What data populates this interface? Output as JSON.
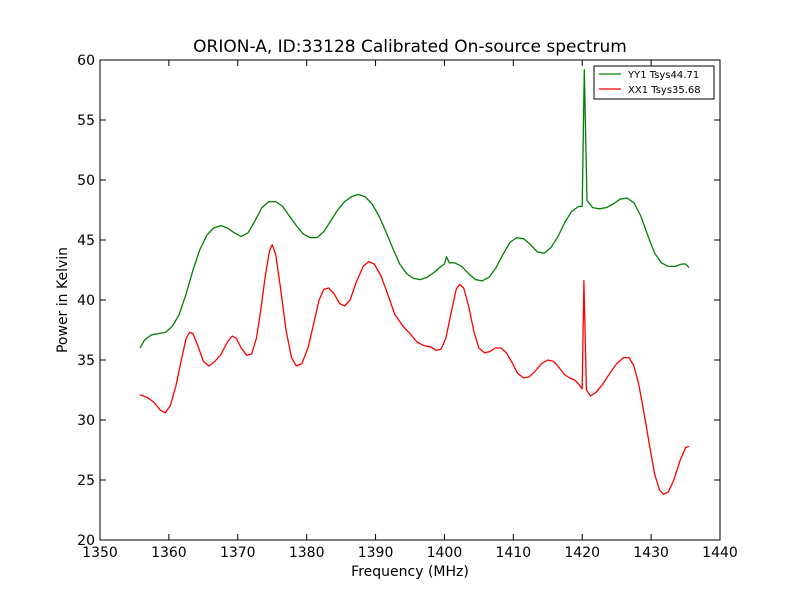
{
  "chart_data": {
    "type": "line",
    "title": "ORION-A, ID:33128 Calibrated On-source spectrum",
    "xlabel": "Frequency (MHz)",
    "ylabel": "Power in Kelvin",
    "xlim": [
      1350,
      1440
    ],
    "ylim": [
      20,
      60
    ],
    "xticks": [
      1350,
      1360,
      1370,
      1380,
      1390,
      1400,
      1410,
      1420,
      1430,
      1440
    ],
    "yticks": [
      20,
      25,
      30,
      35,
      40,
      45,
      50,
      55,
      60
    ],
    "grid": false,
    "legend_position": "top-right",
    "series": [
      {
        "name": "YY1 Tsys44.71",
        "color": "#008000",
        "points": [
          [
            1355.8,
            36.0
          ],
          [
            1356.5,
            36.7
          ],
          [
            1357.5,
            37.1
          ],
          [
            1358.5,
            37.2
          ],
          [
            1359.5,
            37.3
          ],
          [
            1360.5,
            37.8
          ],
          [
            1361.5,
            38.8
          ],
          [
            1362.5,
            40.5
          ],
          [
            1363.5,
            42.5
          ],
          [
            1364.5,
            44.2
          ],
          [
            1365.5,
            45.4
          ],
          [
            1366.5,
            46.0
          ],
          [
            1367.5,
            46.2
          ],
          [
            1368.5,
            46.0
          ],
          [
            1369.5,
            45.6
          ],
          [
            1370.5,
            45.3
          ],
          [
            1371.5,
            45.6
          ],
          [
            1372.5,
            46.6
          ],
          [
            1373.5,
            47.7
          ],
          [
            1374.5,
            48.2
          ],
          [
            1375.5,
            48.2
          ],
          [
            1376.5,
            47.8
          ],
          [
            1377.5,
            47.0
          ],
          [
            1378.5,
            46.2
          ],
          [
            1379.5,
            45.5
          ],
          [
            1380.5,
            45.2
          ],
          [
            1381.5,
            45.2
          ],
          [
            1382.5,
            45.7
          ],
          [
            1383.5,
            46.6
          ],
          [
            1384.5,
            47.5
          ],
          [
            1385.5,
            48.2
          ],
          [
            1386.5,
            48.6
          ],
          [
            1387.5,
            48.8
          ],
          [
            1388.5,
            48.6
          ],
          [
            1389.5,
            48.0
          ],
          [
            1390.5,
            47.0
          ],
          [
            1391.5,
            45.7
          ],
          [
            1392.5,
            44.3
          ],
          [
            1393.5,
            43.0
          ],
          [
            1394.5,
            42.2
          ],
          [
            1395.5,
            41.8
          ],
          [
            1396.5,
            41.7
          ],
          [
            1397.5,
            41.9
          ],
          [
            1398.5,
            42.3
          ],
          [
            1399.5,
            42.8
          ],
          [
            1400.0,
            43.0
          ],
          [
            1400.3,
            43.6
          ],
          [
            1400.7,
            43.1
          ],
          [
            1401.5,
            43.1
          ],
          [
            1402.5,
            42.8
          ],
          [
            1403.5,
            42.2
          ],
          [
            1404.5,
            41.7
          ],
          [
            1405.5,
            41.6
          ],
          [
            1406.5,
            41.9
          ],
          [
            1407.5,
            42.7
          ],
          [
            1408.5,
            43.8
          ],
          [
            1409.5,
            44.8
          ],
          [
            1410.5,
            45.2
          ],
          [
            1411.5,
            45.1
          ],
          [
            1412.5,
            44.6
          ],
          [
            1413.5,
            44.0
          ],
          [
            1414.5,
            43.9
          ],
          [
            1415.5,
            44.4
          ],
          [
            1416.5,
            45.3
          ],
          [
            1417.5,
            46.5
          ],
          [
            1418.5,
            47.4
          ],
          [
            1419.5,
            47.8
          ],
          [
            1420.0,
            47.8
          ],
          [
            1420.3,
            59.2
          ],
          [
            1420.7,
            48.3
          ],
          [
            1421.5,
            47.7
          ],
          [
            1422.5,
            47.6
          ],
          [
            1423.5,
            47.7
          ],
          [
            1424.5,
            48.0
          ],
          [
            1425.5,
            48.4
          ],
          [
            1426.5,
            48.5
          ],
          [
            1427.5,
            48.1
          ],
          [
            1428.5,
            47.0
          ],
          [
            1429.5,
            45.4
          ],
          [
            1430.5,
            43.9
          ],
          [
            1431.5,
            43.1
          ],
          [
            1432.5,
            42.8
          ],
          [
            1433.5,
            42.8
          ],
          [
            1434.5,
            43.0
          ],
          [
            1435.0,
            43.0
          ],
          [
            1435.5,
            42.7
          ]
        ]
      },
      {
        "name": "XX1 Tsys35.68",
        "color": "#ff0000",
        "points": [
          [
            1355.8,
            32.1
          ],
          [
            1356.8,
            31.9
          ],
          [
            1357.8,
            31.5
          ],
          [
            1358.8,
            30.8
          ],
          [
            1359.5,
            30.6
          ],
          [
            1360.2,
            31.2
          ],
          [
            1361.0,
            32.8
          ],
          [
            1361.8,
            35.0
          ],
          [
            1362.5,
            36.8
          ],
          [
            1363.0,
            37.3
          ],
          [
            1363.5,
            37.2
          ],
          [
            1364.2,
            36.2
          ],
          [
            1365.0,
            34.9
          ],
          [
            1365.8,
            34.5
          ],
          [
            1366.5,
            34.8
          ],
          [
            1367.5,
            35.4
          ],
          [
            1368.5,
            36.5
          ],
          [
            1369.2,
            37.0
          ],
          [
            1369.8,
            36.8
          ],
          [
            1370.5,
            36.0
          ],
          [
            1371.3,
            35.4
          ],
          [
            1372.0,
            35.5
          ],
          [
            1372.7,
            36.8
          ],
          [
            1373.3,
            39.0
          ],
          [
            1374.0,
            42.0
          ],
          [
            1374.6,
            44.1
          ],
          [
            1375.0,
            44.6
          ],
          [
            1375.5,
            43.8
          ],
          [
            1376.2,
            41.0
          ],
          [
            1377.0,
            37.5
          ],
          [
            1377.8,
            35.2
          ],
          [
            1378.5,
            34.5
          ],
          [
            1379.3,
            34.7
          ],
          [
            1380.2,
            36.0
          ],
          [
            1381.0,
            38.0
          ],
          [
            1381.8,
            40.0
          ],
          [
            1382.5,
            40.9
          ],
          [
            1383.2,
            41.0
          ],
          [
            1384.0,
            40.5
          ],
          [
            1384.8,
            39.7
          ],
          [
            1385.5,
            39.5
          ],
          [
            1386.3,
            40.0
          ],
          [
            1387.2,
            41.5
          ],
          [
            1388.2,
            42.8
          ],
          [
            1389.0,
            43.2
          ],
          [
            1389.8,
            43.0
          ],
          [
            1390.8,
            42.0
          ],
          [
            1391.8,
            40.4
          ],
          [
            1392.8,
            38.8
          ],
          [
            1394.0,
            37.8
          ],
          [
            1395.0,
            37.2
          ],
          [
            1396.0,
            36.5
          ],
          [
            1397.0,
            36.2
          ],
          [
            1398.0,
            36.1
          ],
          [
            1398.8,
            35.8
          ],
          [
            1399.5,
            35.9
          ],
          [
            1400.2,
            36.8
          ],
          [
            1401.0,
            39.0
          ],
          [
            1401.7,
            40.9
          ],
          [
            1402.2,
            41.3
          ],
          [
            1402.8,
            41.0
          ],
          [
            1403.5,
            39.5
          ],
          [
            1404.3,
            37.3
          ],
          [
            1405.0,
            36.0
          ],
          [
            1405.8,
            35.6
          ],
          [
            1406.6,
            35.7
          ],
          [
            1407.4,
            36.0
          ],
          [
            1408.2,
            36.0
          ],
          [
            1409.0,
            35.6
          ],
          [
            1409.8,
            34.8
          ],
          [
            1410.6,
            33.9
          ],
          [
            1411.5,
            33.5
          ],
          [
            1412.3,
            33.6
          ],
          [
            1413.2,
            34.1
          ],
          [
            1414.1,
            34.7
          ],
          [
            1415.0,
            35.0
          ],
          [
            1415.8,
            34.9
          ],
          [
            1416.6,
            34.4
          ],
          [
            1417.4,
            33.8
          ],
          [
            1418.2,
            33.5
          ],
          [
            1419.0,
            33.3
          ],
          [
            1419.6,
            32.9
          ],
          [
            1420.0,
            32.6
          ],
          [
            1420.25,
            41.6
          ],
          [
            1420.6,
            32.5
          ],
          [
            1421.2,
            32.0
          ],
          [
            1422.0,
            32.3
          ],
          [
            1423.0,
            33.0
          ],
          [
            1424.0,
            33.9
          ],
          [
            1425.0,
            34.7
          ],
          [
            1426.0,
            35.2
          ],
          [
            1426.8,
            35.2
          ],
          [
            1427.5,
            34.5
          ],
          [
            1428.2,
            33.0
          ],
          [
            1429.0,
            30.5
          ],
          [
            1429.8,
            27.8
          ],
          [
            1430.5,
            25.5
          ],
          [
            1431.2,
            24.2
          ],
          [
            1431.8,
            23.8
          ],
          [
            1432.5,
            24.0
          ],
          [
            1433.3,
            25.0
          ],
          [
            1434.2,
            26.6
          ],
          [
            1435.0,
            27.7
          ],
          [
            1435.5,
            27.8
          ]
        ]
      }
    ]
  }
}
